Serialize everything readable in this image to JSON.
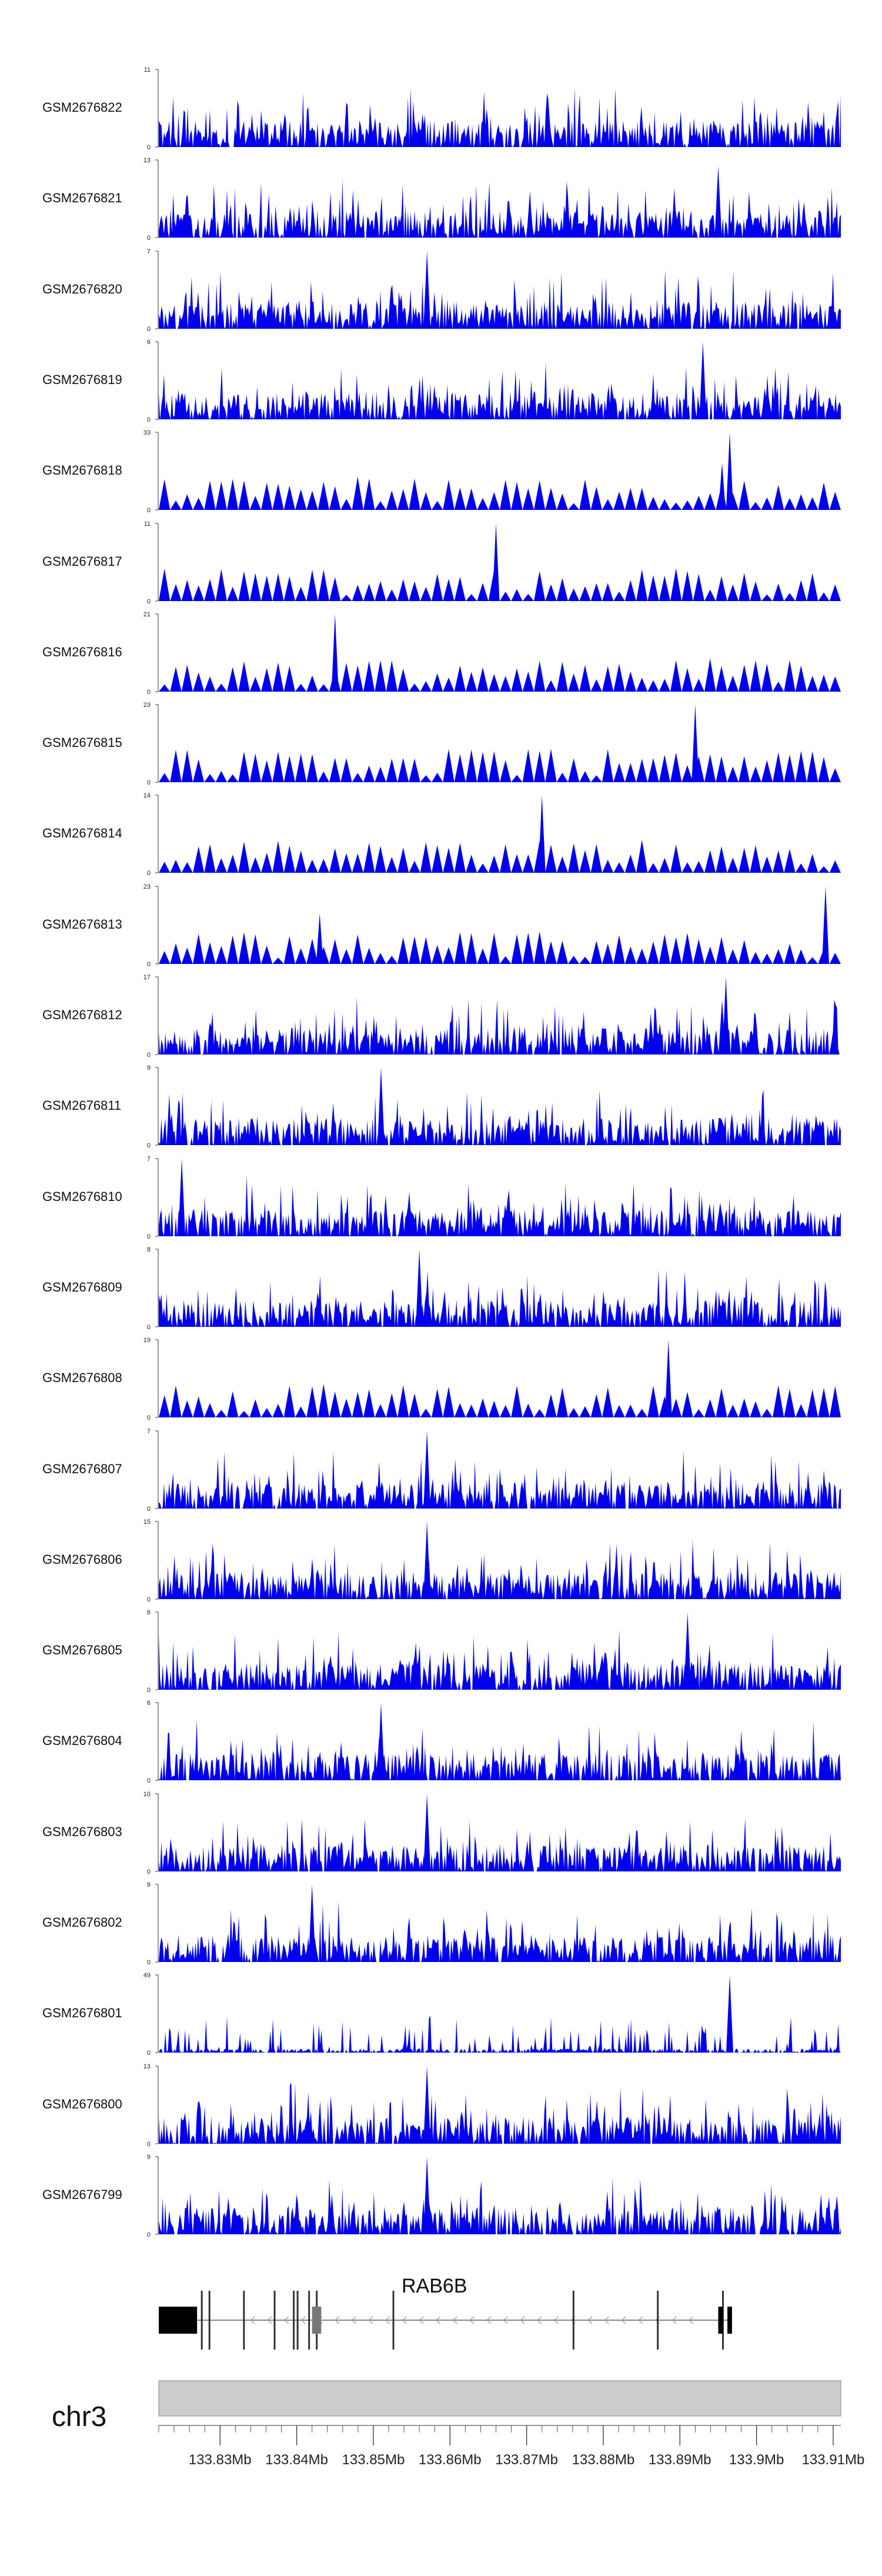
{
  "chart_data": {
    "type": "area",
    "chromosome": "chr3",
    "gene": {
      "name": "RAB6B",
      "strand": "-"
    },
    "x_axis": {
      "unit": "Mb",
      "range": [
        133.822,
        133.911
      ],
      "tick_labels": [
        "133.83Mb",
        "133.84Mb",
        "133.85Mb",
        "133.86Mb",
        "133.87Mb",
        "133.88Mb",
        "133.89Mb",
        "133.9Mb",
        "133.91Mb"
      ],
      "tick_values": [
        133.83,
        133.84,
        133.85,
        133.86,
        133.87,
        133.88,
        133.89,
        133.9,
        133.91
      ]
    },
    "series_color": "#0000ee",
    "tracks": [
      {
        "name": "GSM2676822",
        "ymax": 11,
        "peaks": []
      },
      {
        "name": "GSM2676821",
        "ymax": 13,
        "peaks": [
          [
            133.895,
            12
          ]
        ]
      },
      {
        "name": "GSM2676820",
        "ymax": 7,
        "peaks": [
          [
            133.857,
            7
          ]
        ]
      },
      {
        "name": "GSM2676819",
        "ymax": 6,
        "peaks": [
          [
            133.893,
            6
          ]
        ]
      },
      {
        "name": "GSM2676818",
        "ymax": 33,
        "peaks": [
          [
            133.8965,
            33
          ],
          [
            133.8955,
            20
          ]
        ]
      },
      {
        "name": "GSM2676817",
        "ymax": 11,
        "peaks": [
          [
            133.866,
            11
          ]
        ]
      },
      {
        "name": "GSM2676816",
        "ymax": 21,
        "peaks": [
          [
            133.845,
            21
          ]
        ]
      },
      {
        "name": "GSM2676815",
        "ymax": 23,
        "peaks": [
          [
            133.892,
            23
          ]
        ]
      },
      {
        "name": "GSM2676814",
        "ymax": 14,
        "peaks": [
          [
            133.872,
            14
          ]
        ]
      },
      {
        "name": "GSM2676813",
        "ymax": 23,
        "peaks": [
          [
            133.843,
            15
          ],
          [
            133.909,
            23
          ]
        ]
      },
      {
        "name": "GSM2676812",
        "ymax": 17,
        "peaks": [
          [
            133.896,
            17
          ],
          [
            133.8955,
            12
          ]
        ]
      },
      {
        "name": "GSM2676811",
        "ymax": 9,
        "peaks": [
          [
            133.851,
            9
          ]
        ]
      },
      {
        "name": "GSM2676810",
        "ymax": 7,
        "peaks": [
          [
            133.825,
            7
          ]
        ]
      },
      {
        "name": "GSM2676809",
        "ymax": 8,
        "peaks": [
          [
            133.856,
            8
          ]
        ]
      },
      {
        "name": "GSM2676808",
        "ymax": 19,
        "peaks": [
          [
            133.8885,
            19
          ]
        ]
      },
      {
        "name": "GSM2676807",
        "ymax": 7,
        "peaks": [
          [
            133.857,
            7
          ]
        ]
      },
      {
        "name": "GSM2676806",
        "ymax": 15,
        "peaks": [
          [
            133.857,
            15
          ]
        ]
      },
      {
        "name": "GSM2676805",
        "ymax": 6,
        "peaks": [
          [
            133.891,
            6
          ]
        ]
      },
      {
        "name": "GSM2676804",
        "ymax": 6,
        "peaks": [
          [
            133.851,
            6
          ]
        ]
      },
      {
        "name": "GSM2676803",
        "ymax": 10,
        "peaks": [
          [
            133.857,
            10
          ]
        ]
      },
      {
        "name": "GSM2676802",
        "ymax": 9,
        "peaks": [
          [
            133.842,
            9
          ]
        ]
      },
      {
        "name": "GSM2676801",
        "ymax": 49,
        "peaks": [
          [
            133.8965,
            49
          ]
        ]
      },
      {
        "name": "GSM2676800",
        "ymax": 13,
        "peaks": [
          [
            133.857,
            13
          ]
        ]
      },
      {
        "name": "GSM2676799",
        "ymax": 9,
        "peaks": [
          [
            133.857,
            9
          ]
        ]
      }
    ]
  }
}
